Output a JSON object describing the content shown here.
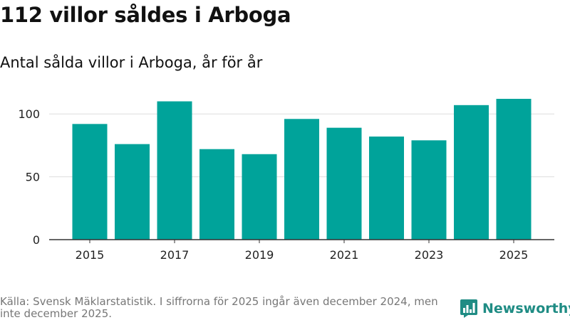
{
  "title": "112 villor såldes i Arboga",
  "subtitle": "Antal sålda villor i Arboga, år för år",
  "source": "Källa: Svensk Mäklarstatistik. I siffrorna för 2025 ingår även december 2024, men inte december 2025.",
  "brand": "Newsworthy",
  "colors": {
    "bar": "#00a39a",
    "brand": "#1f8c84",
    "grid": "#dddddd",
    "axis": "#333333"
  },
  "chart_data": {
    "type": "bar",
    "title": "112 villor såldes i Arboga",
    "subtitle": "Antal sålda villor i Arboga, år för år",
    "xlabel": "",
    "ylabel": "",
    "categories": [
      "2015",
      "2016",
      "2017",
      "2018",
      "2019",
      "2020",
      "2021",
      "2022",
      "2023",
      "2024",
      "2025"
    ],
    "values": [
      92,
      76,
      110,
      72,
      68,
      96,
      89,
      82,
      79,
      107,
      112
    ],
    "ylim": [
      0,
      125
    ],
    "yticks": [
      "0",
      "50",
      "100"
    ],
    "xticks": [
      "2015",
      "2017",
      "2019",
      "2021",
      "2023",
      "2025"
    ],
    "grid": true,
    "legend": "none"
  }
}
